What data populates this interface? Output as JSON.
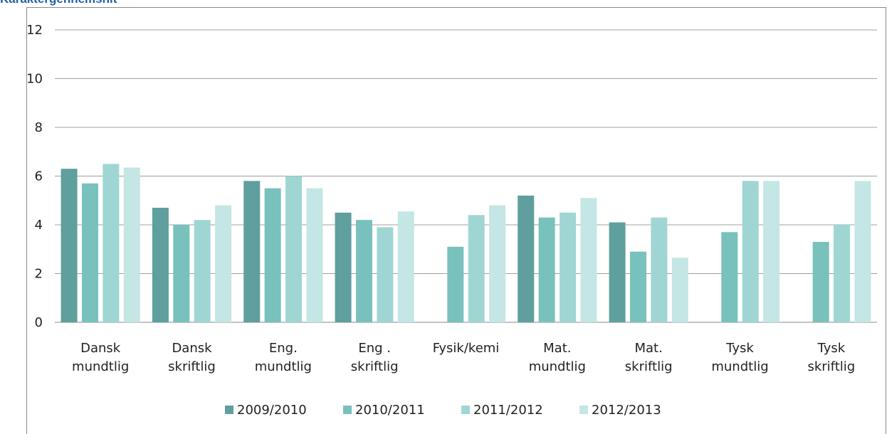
{
  "chart_data": {
    "type": "bar",
    "title": "Karaktergennemsnit",
    "categories": [
      "Dansk mundtlig",
      "Dansk skriftlig",
      "Eng. mundtlig",
      "Eng . skriftlig",
      "Fysik/kemi",
      "Mat. mundtlig",
      "Mat. skriftlig",
      "Tysk mundtlig",
      "Tysk skriftlig"
    ],
    "series": [
      {
        "name": "2009/2010",
        "color": "#5f9f9d",
        "values": [
          6.3,
          4.7,
          5.8,
          4.5,
          null,
          5.2,
          4.1,
          null,
          null
        ]
      },
      {
        "name": "2010/2011",
        "color": "#78c1bd",
        "values": [
          5.7,
          4.0,
          5.5,
          4.2,
          3.1,
          4.3,
          2.9,
          3.7,
          3.3
        ]
      },
      {
        "name": "2011/2012",
        "color": "#9fd6d3",
        "values": [
          6.5,
          4.2,
          6.0,
          3.9,
          4.4,
          4.5,
          4.3,
          5.8,
          4.0
        ]
      },
      {
        "name": "2012/2013",
        "color": "#c4e6e4",
        "values": [
          6.35,
          4.8,
          5.5,
          4.55,
          4.8,
          5.1,
          2.65,
          5.8,
          5.8
        ]
      }
    ],
    "ylim": [
      0,
      12
    ],
    "yticks": [
      0,
      2,
      4,
      6,
      8,
      10,
      12
    ],
    "grid": true,
    "legend": "bottom"
  }
}
